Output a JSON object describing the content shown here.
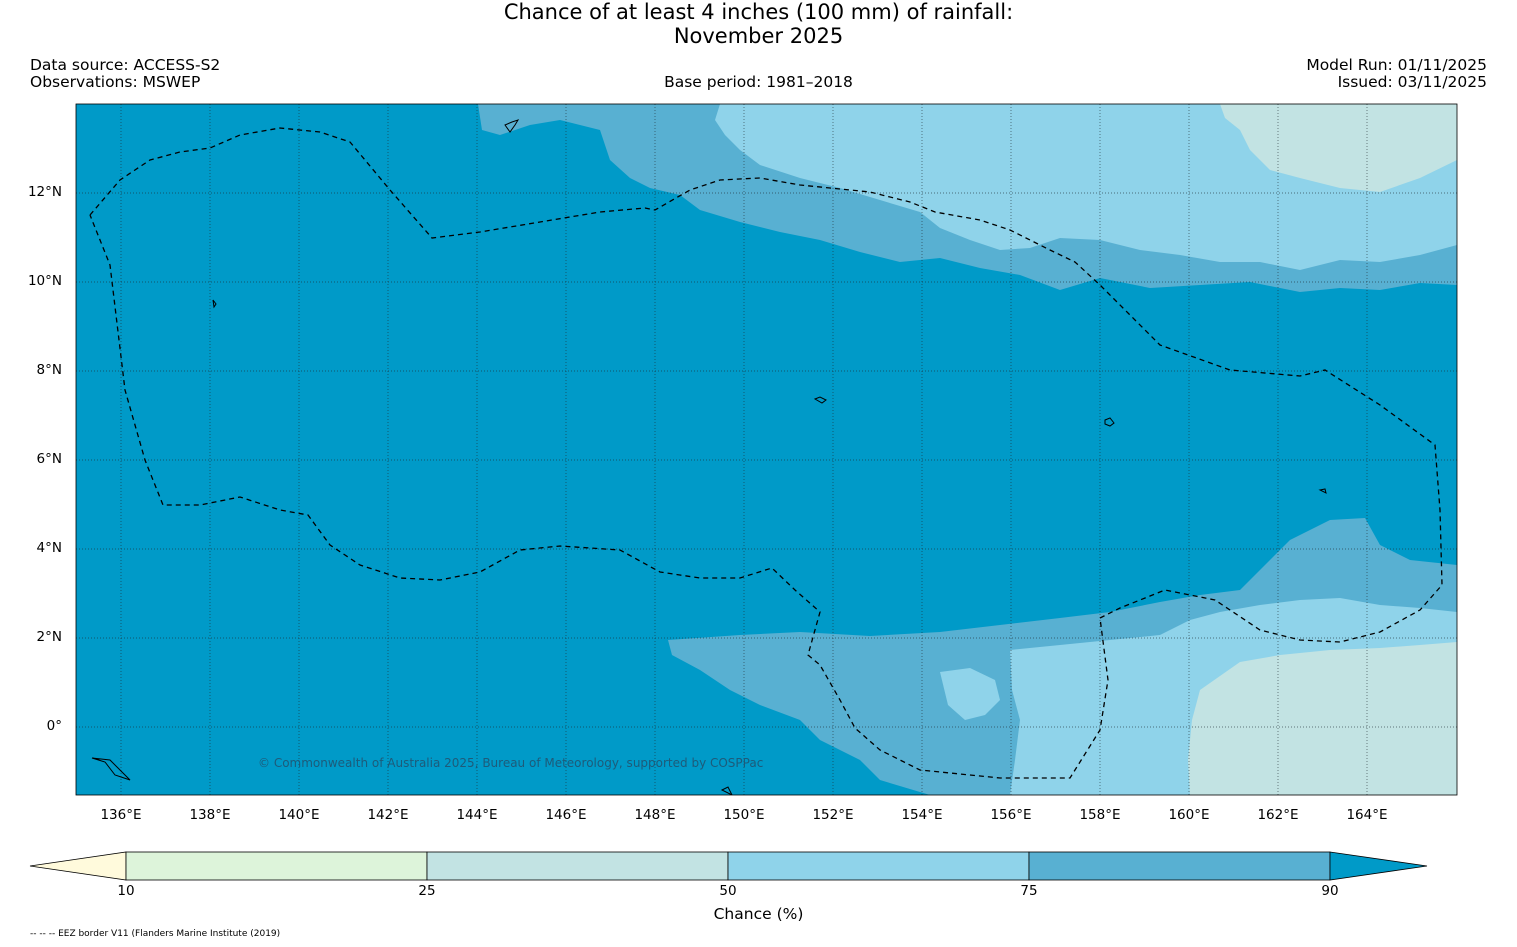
{
  "title": {
    "line1": "Chance of at least 4 inches (100  mm) of rainfall:",
    "line2": "November 2025"
  },
  "meta": {
    "data_source": "Data source: ACCESS-S2",
    "observations": "Observations: MSWEP",
    "base_period": "Base period: 1981–2018",
    "model_run": "Model Run: 01/11/2025",
    "issued": "Issued: 03/11/2025"
  },
  "map": {
    "lat_labels": [
      "12°N",
      "10°N",
      "8°N",
      "6°N",
      "4°N",
      "2°N",
      "0°"
    ],
    "lon_labels": [
      "136°E",
      "138°E",
      "140°E",
      "142°E",
      "144°E",
      "146°E",
      "148°E",
      "150°E",
      "152°E",
      "154°E",
      "156°E",
      "158°E",
      "160°E",
      "162°E",
      "164°E"
    ],
    "copyright": "© Commonwealth of Australia 2025, Bureau of Meteorology, supported by COSPPac",
    "colors": {
      "c90plus": "#009ac8",
      "c75_90": "#58b0d2",
      "c50_75": "#8fd3ea",
      "c25_50": "#c2e3e3",
      "c10_25": "#ddf4da",
      "below10": "#fffadc"
    }
  },
  "colorbar": {
    "ticks": [
      "10",
      "25",
      "50",
      "75",
      "90"
    ],
    "label": "Chance (%)"
  },
  "footnote": "-- -- -- EEZ border V11 (Flanders Marine Institute (2019)"
}
